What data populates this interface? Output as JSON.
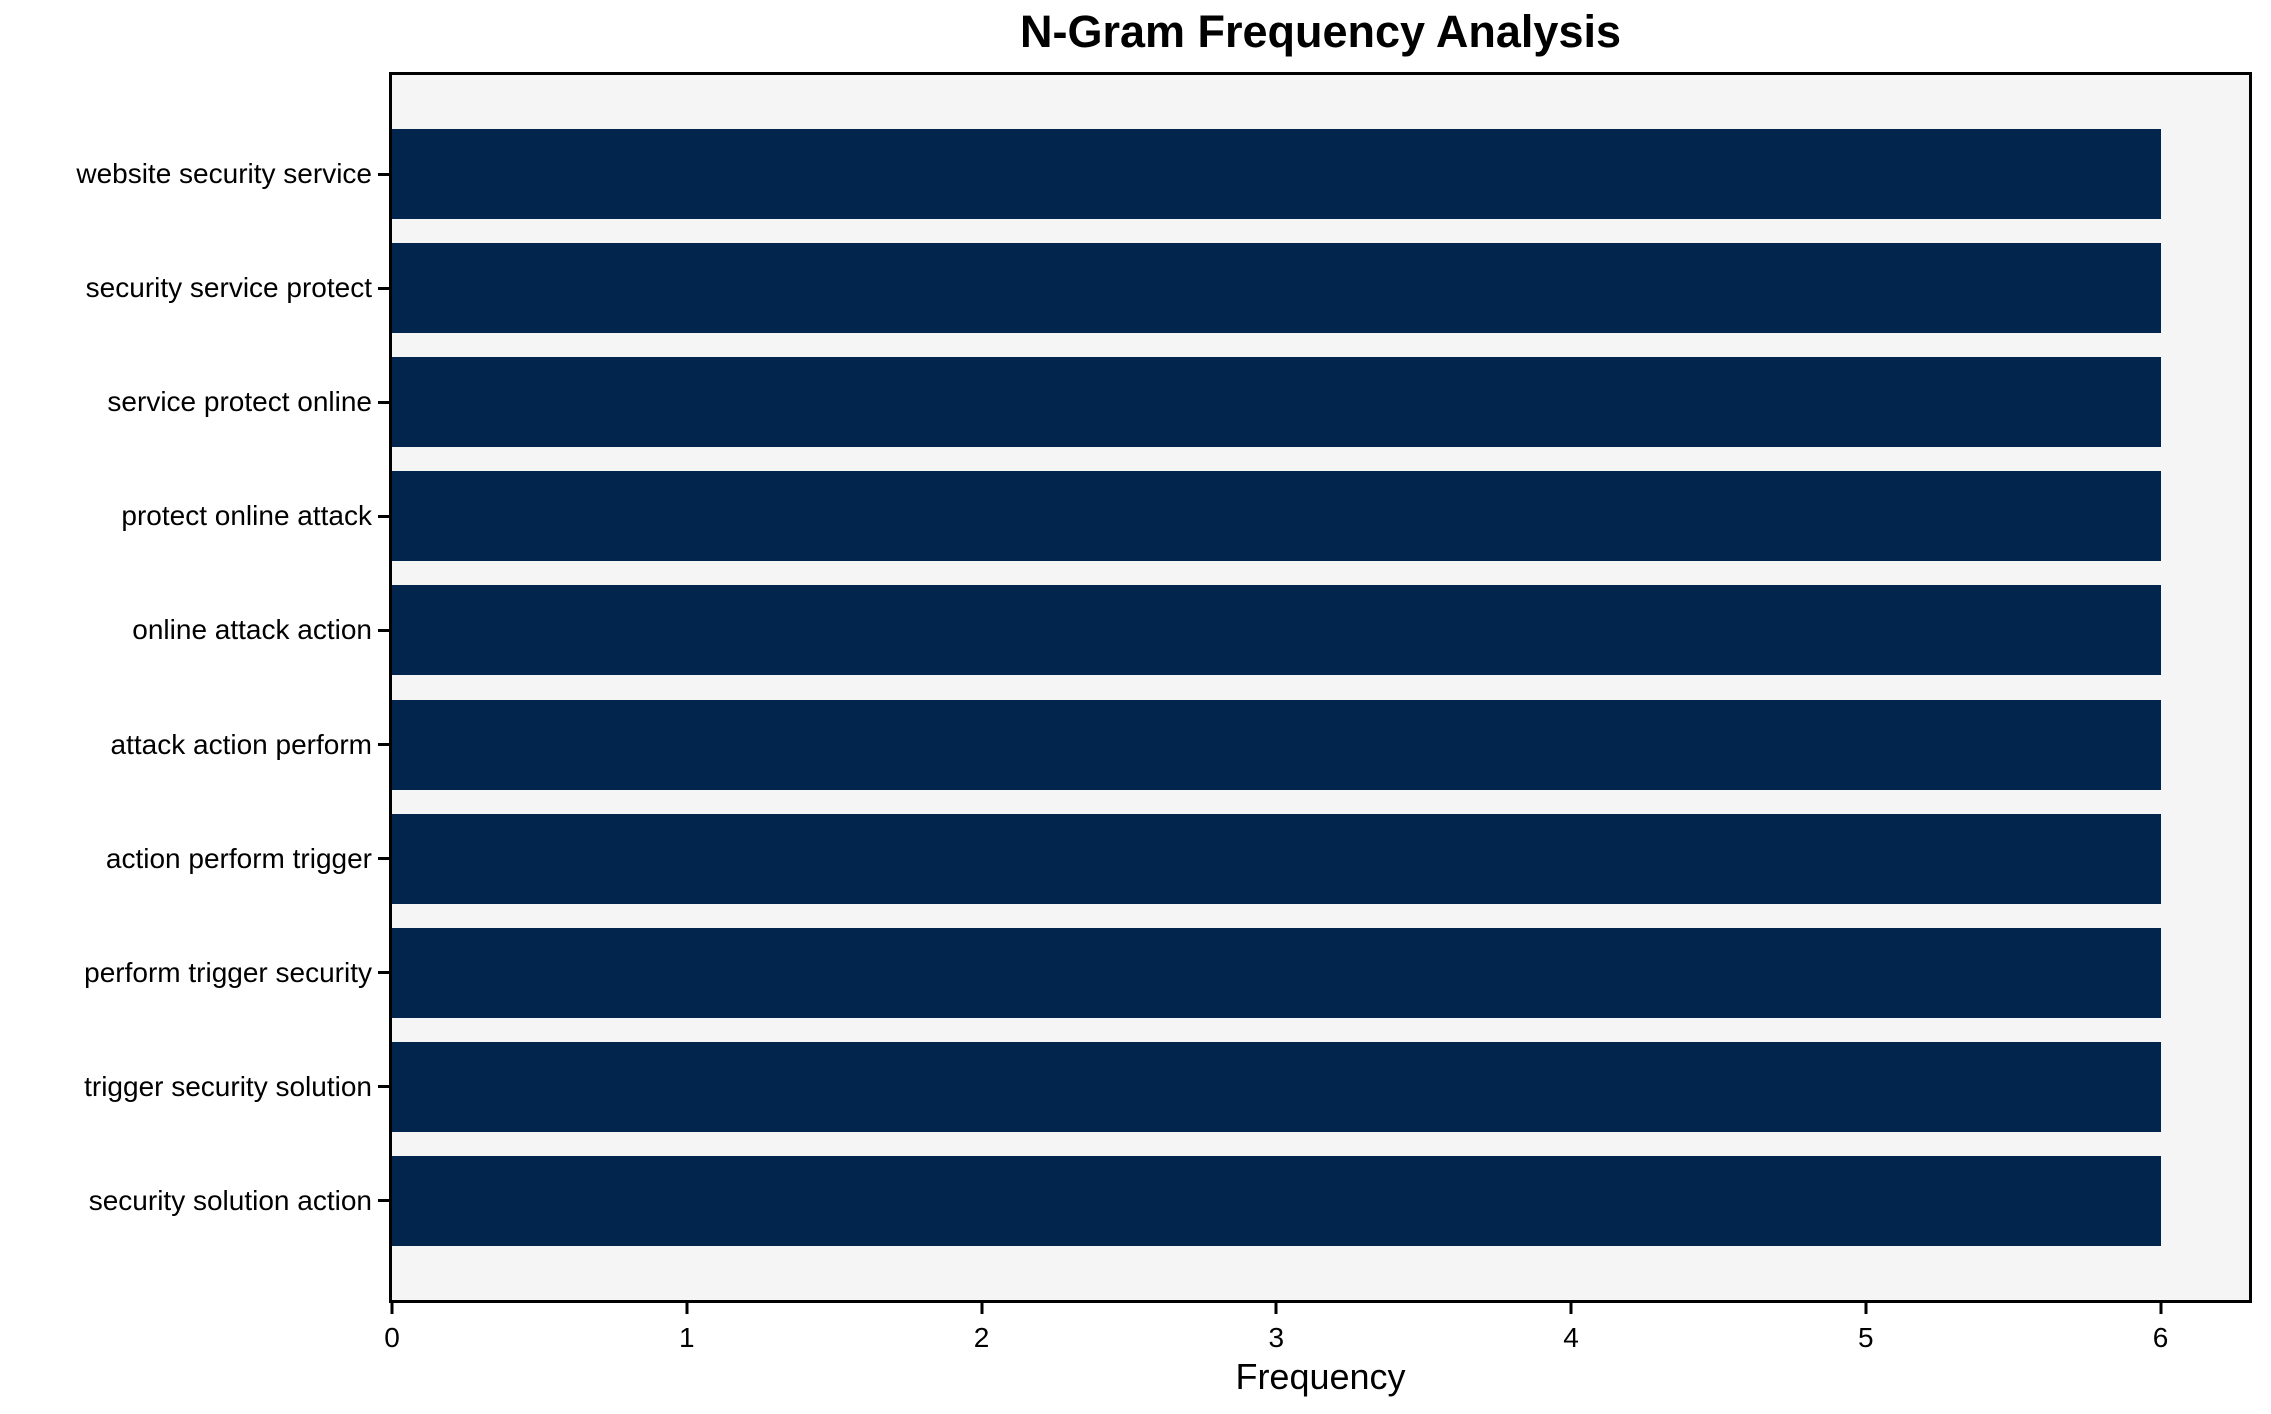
{
  "chart_data": {
    "type": "bar",
    "orientation": "horizontal",
    "title": "N-Gram Frequency Analysis",
    "xlabel": "Frequency",
    "ylabel": "",
    "categories": [
      "website security service",
      "security service protect",
      "service protect online",
      "protect online attack",
      "online attack action",
      "attack action perform",
      "action perform trigger",
      "perform trigger security",
      "trigger security solution",
      "security solution action"
    ],
    "values": [
      6,
      6,
      6,
      6,
      6,
      6,
      6,
      6,
      6,
      6
    ],
    "xlim": [
      0,
      6.3
    ],
    "xticks": [
      0,
      1,
      2,
      3,
      4,
      5,
      6
    ],
    "grid": false,
    "legend": false,
    "bar_color": "#02254e",
    "plot_bg": "#f5f5f5",
    "figure_bg": "#ffffff",
    "spine_color": "#000000"
  }
}
